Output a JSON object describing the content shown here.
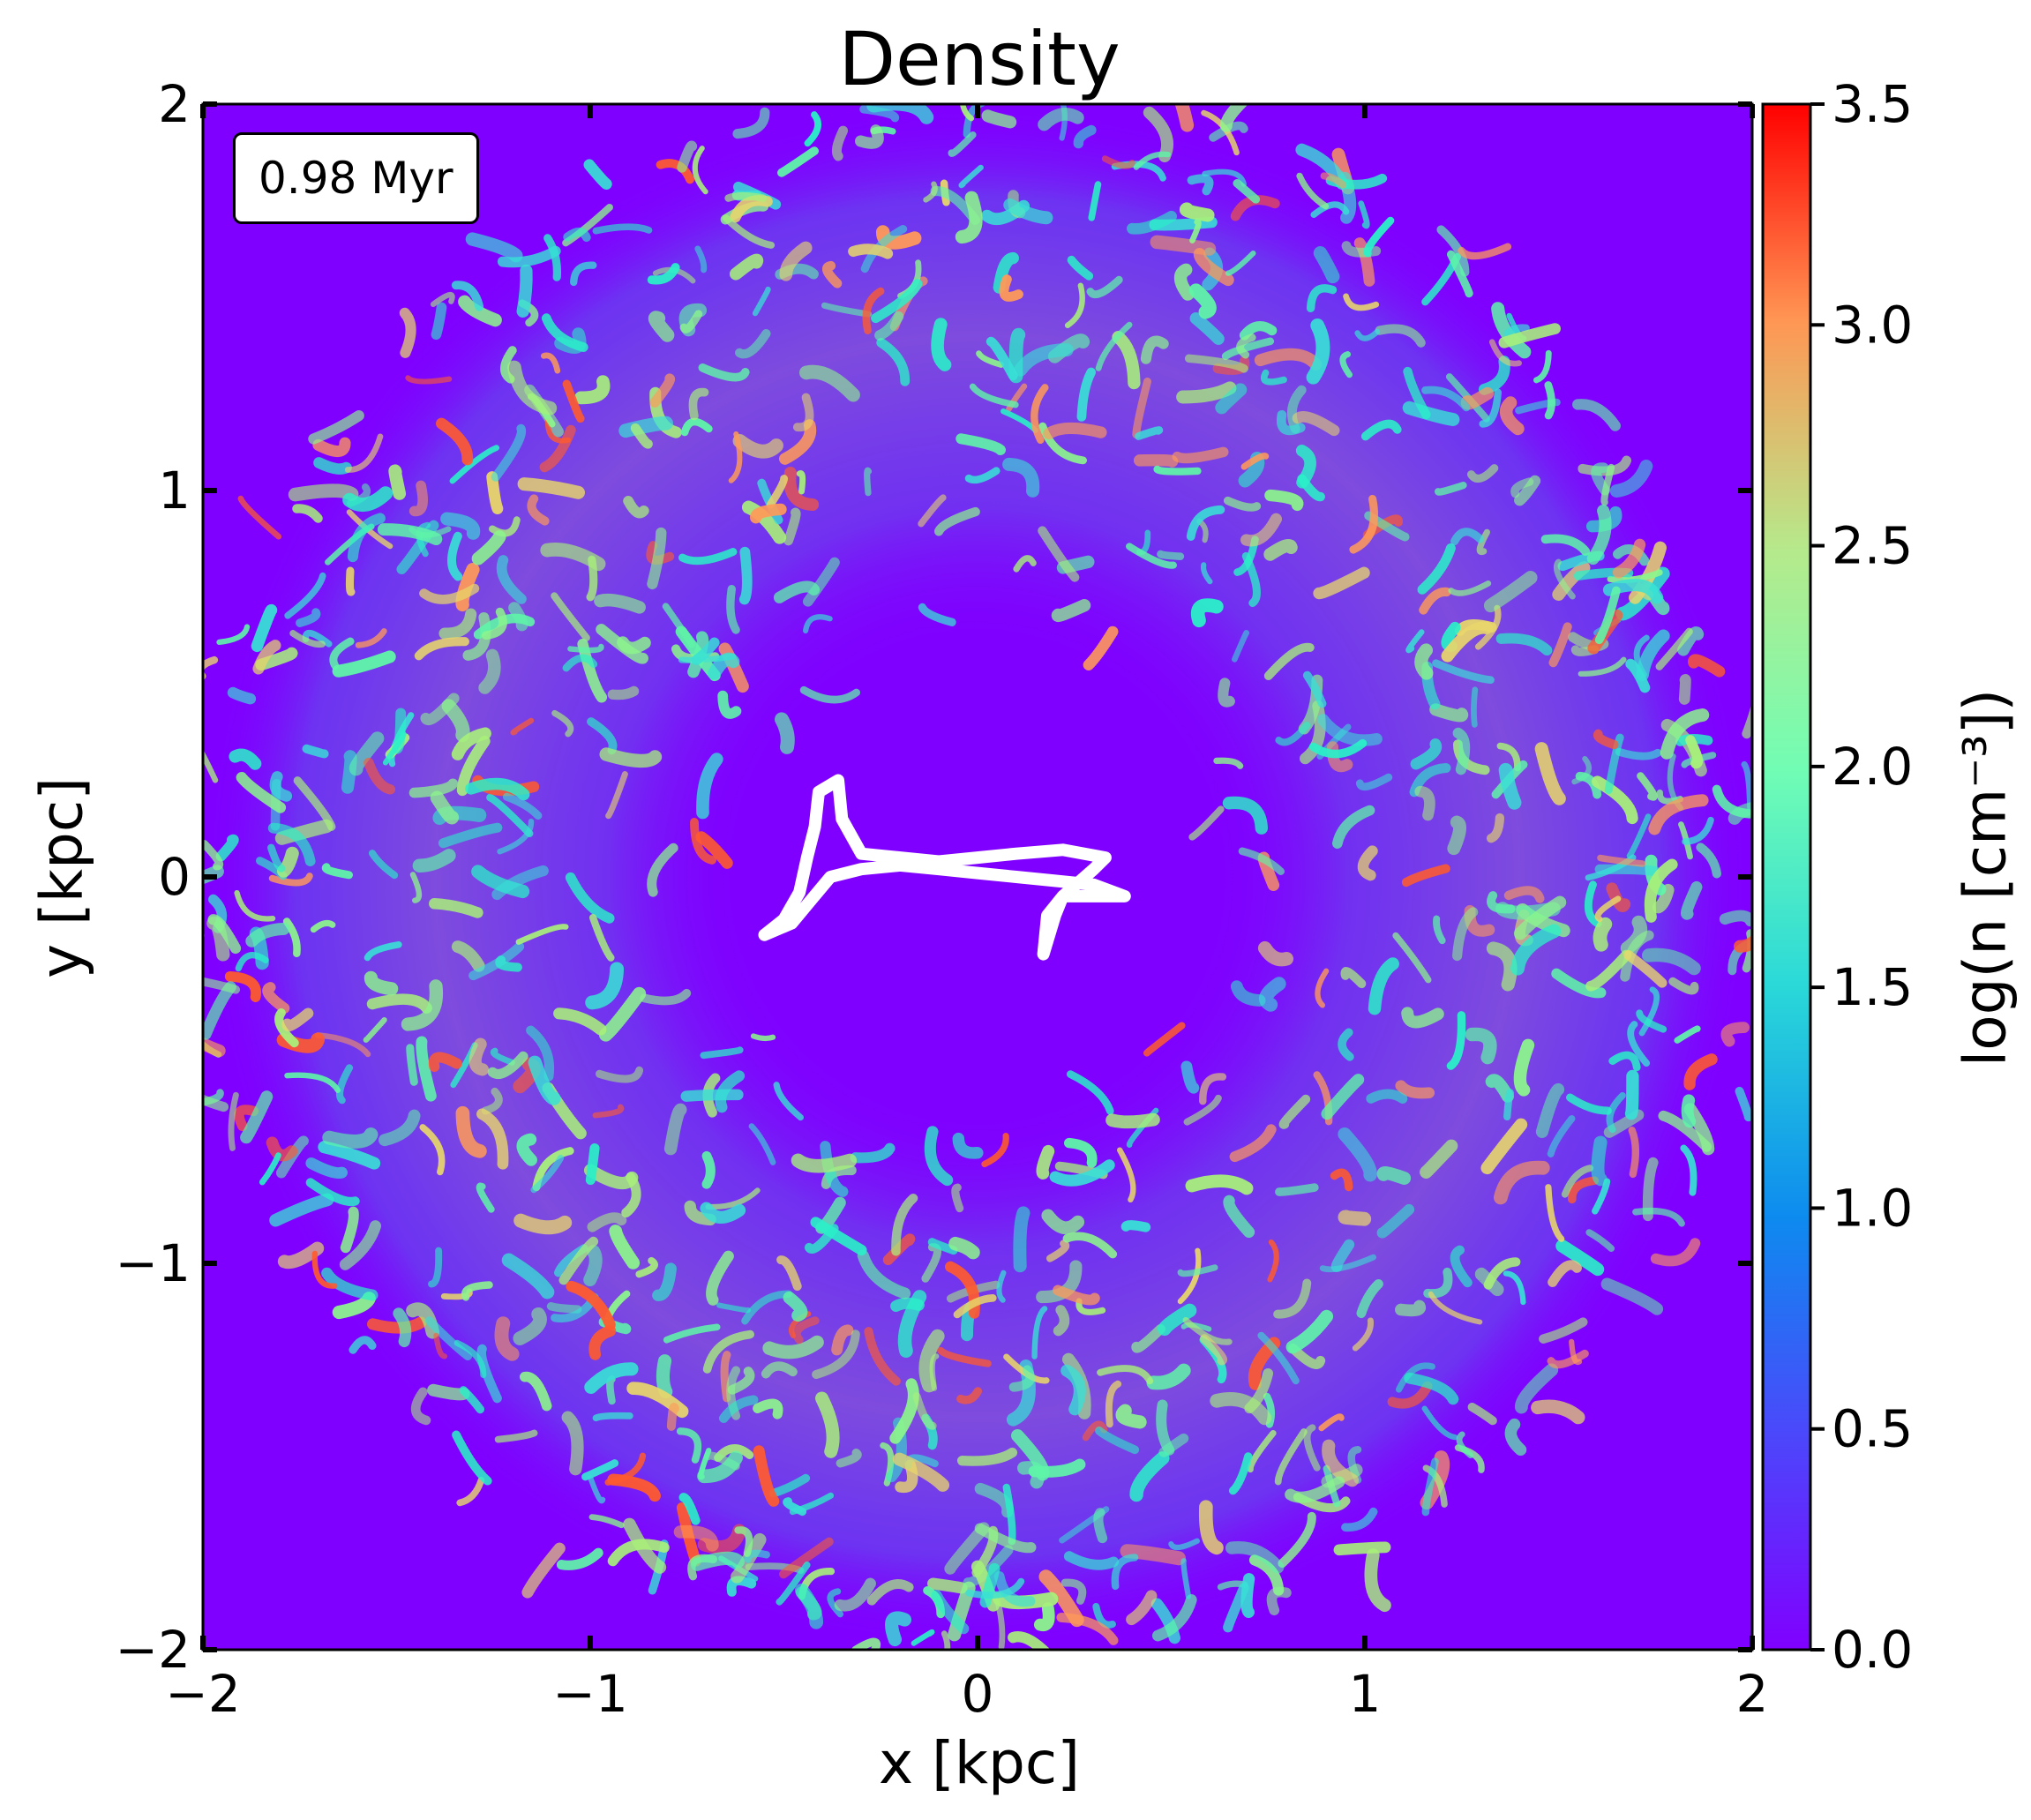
{
  "chart_data": {
    "type": "heatmap",
    "title": "Density",
    "xlabel": "x [kpc]",
    "ylabel": "y [kpc]",
    "xlim": [
      -2,
      2
    ],
    "ylim": [
      -2,
      2
    ],
    "xticks": [
      -2,
      -1,
      0,
      1,
      2
    ],
    "xtick_labels": [
      "−2",
      "−1",
      "0",
      "1",
      "2"
    ],
    "yticks": [
      -2,
      -1,
      0,
      1,
      2
    ],
    "ytick_labels": [
      "−2",
      "−1",
      "0",
      "1",
      "2"
    ],
    "annotation": "0.98 Myr",
    "colorbar": {
      "label": "log(n [cm⁻³])",
      "colormap": "rainbow",
      "range": [
        0.0,
        3.5
      ],
      "ticks": [
        0.0,
        0.5,
        1.0,
        1.5,
        2.0,
        2.5,
        3.0,
        3.5
      ],
      "tick_labels": [
        "0.0",
        "0.5",
        "1.0",
        "1.5",
        "2.0",
        "2.5",
        "3.0",
        "3.5"
      ]
    },
    "background_color": "#7f00ff",
    "contour_color": "#ffffff",
    "contour_path": [
      [
        -0.55,
        -0.15
      ],
      [
        -0.48,
        -0.12
      ],
      [
        -0.43,
        -0.06
      ],
      [
        -0.38,
        0.0
      ],
      [
        -0.3,
        0.02
      ],
      [
        -0.2,
        0.03
      ],
      [
        -0.1,
        0.02
      ],
      [
        0.0,
        0.01
      ],
      [
        0.1,
        0.0
      ],
      [
        0.2,
        -0.01
      ],
      [
        0.3,
        -0.02
      ],
      [
        0.38,
        -0.05
      ],
      [
        0.3,
        -0.05
      ],
      [
        0.22,
        -0.05
      ],
      [
        0.18,
        -0.1
      ],
      [
        0.17,
        -0.2
      ],
      [
        0.2,
        -0.1
      ],
      [
        0.22,
        -0.05
      ],
      [
        0.3,
        0.02
      ],
      [
        0.33,
        0.05
      ],
      [
        0.22,
        0.07
      ],
      [
        0.1,
        0.06
      ],
      [
        0.0,
        0.05
      ],
      [
        -0.1,
        0.04
      ],
      [
        -0.2,
        0.05
      ],
      [
        -0.3,
        0.06
      ],
      [
        -0.35,
        0.15
      ],
      [
        -0.36,
        0.25
      ],
      [
        -0.41,
        0.22
      ],
      [
        -0.42,
        0.13
      ],
      [
        -0.44,
        0.05
      ],
      [
        -0.46,
        -0.04
      ],
      [
        -0.5,
        -0.11
      ],
      [
        -0.55,
        -0.15
      ]
    ]
  }
}
